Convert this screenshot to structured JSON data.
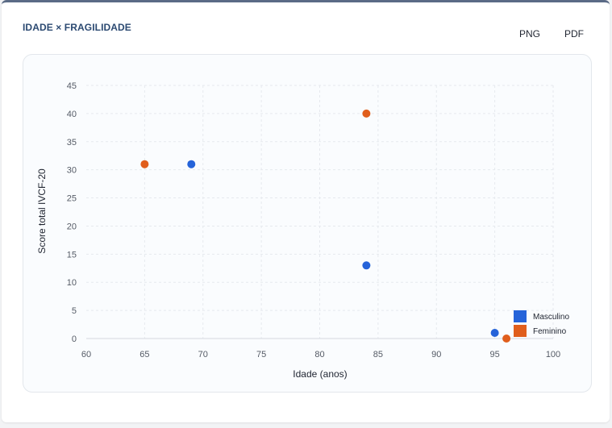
{
  "card": {
    "title": "IDADE × FRAGILIDADE",
    "export_png_label": "PNG",
    "export_pdf_label": "PDF"
  },
  "colors": {
    "masculino": "#2563d9",
    "feminino": "#e05e1c",
    "grid": "#e6e9ee",
    "axis_text": "#555b66"
  },
  "chart_data": {
    "type": "scatter",
    "xlabel": "Idade (anos)",
    "ylabel": "Score total IVCF-20",
    "xlim": [
      60,
      100
    ],
    "ylim": [
      0,
      45
    ],
    "xticks": [
      60,
      65,
      70,
      75,
      80,
      85,
      90,
      95,
      100
    ],
    "yticks": [
      0,
      5,
      10,
      15,
      20,
      25,
      30,
      35,
      40,
      45
    ],
    "grid": true,
    "legend_position": "bottom-right",
    "series": [
      {
        "name": "Masculino",
        "points": [
          {
            "x": 69,
            "y": 31
          },
          {
            "x": 84,
            "y": 13
          },
          {
            "x": 95,
            "y": 1
          }
        ]
      },
      {
        "name": "Feminino",
        "points": [
          {
            "x": 65,
            "y": 31
          },
          {
            "x": 84,
            "y": 40
          },
          {
            "x": 96,
            "y": 0
          }
        ]
      }
    ]
  }
}
